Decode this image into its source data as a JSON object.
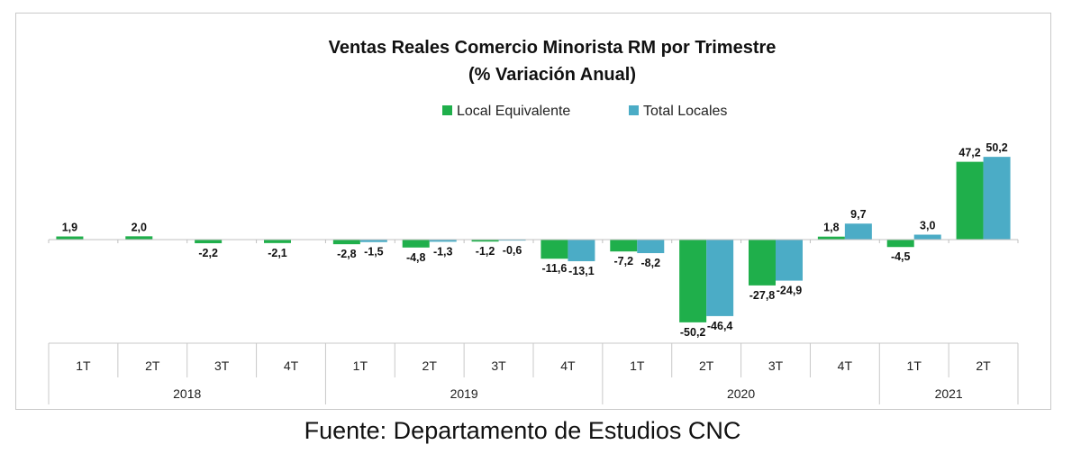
{
  "chart_data": {
    "type": "bar",
    "title": "Ventas Reales Comercio Minorista RM por Trimestre",
    "subtitle": "(% Variación Anual)",
    "categories": [
      "1T",
      "2T",
      "3T",
      "4T",
      "1T",
      "2T",
      "3T",
      "4T",
      "1T",
      "2T",
      "3T",
      "4T",
      "1T",
      "2T"
    ],
    "groups": [
      {
        "label": "2018",
        "count": 4
      },
      {
        "label": "2019",
        "count": 4
      },
      {
        "label": "2020",
        "count": 4
      },
      {
        "label": "2021",
        "count": 2
      }
    ],
    "series": [
      {
        "name": "Local Equivalente",
        "color": "#1faf4b",
        "values": [
          1.9,
          2.0,
          -2.2,
          -2.1,
          -2.8,
          -4.8,
          -1.2,
          -11.6,
          -7.2,
          -50.2,
          -27.8,
          1.8,
          -4.5,
          47.2
        ],
        "labels": [
          "1,9",
          "2,0",
          "-2,2",
          "-2,1",
          "-2,8",
          "-4,8",
          "-1,2",
          "-11,6",
          "-7,2",
          "-50,2",
          "-27,8",
          "1,8",
          "-4,5",
          "47,2"
        ]
      },
      {
        "name": "Total Locales",
        "color": "#4bacc6",
        "values": [
          null,
          null,
          null,
          null,
          -1.5,
          -1.3,
          -0.6,
          -13.1,
          -8.2,
          -46.4,
          -24.9,
          9.7,
          3.0,
          50.2
        ],
        "labels": [
          "",
          "",
          "",
          "",
          "-1,5",
          "-1,3",
          "-0,6",
          "-13,1",
          "-8,2",
          "-46,4",
          "-24,9",
          "9,7",
          "3,0",
          "50,2"
        ]
      }
    ],
    "grid": false,
    "legend_position": "top-center"
  },
  "source": "Fuente: Departamento de Estudios CNC"
}
